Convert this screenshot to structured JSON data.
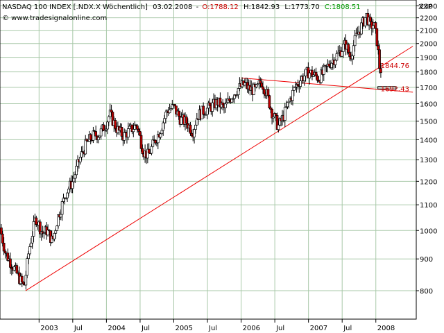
{
  "header": {
    "instrument": "NASDAQ 100 INDEX [.NDX.X  Wöchentlich]",
    "date": "03.02.2008",
    "open": "O:1788.12",
    "high": "H:1842.93",
    "low": "L:1773.70",
    "close": "C:1808.51",
    "symbol": "XXP",
    "copyright": "© www.tradesignalonline.com"
  },
  "colors": {
    "up": "#ffffff",
    "down": "#c00000",
    "open_text": "#cc0000",
    "close_text": "#009900",
    "trend": "#ee0000",
    "grid": "#a8c8a8",
    "value_label": "#cc0000"
  },
  "chart_data": {
    "type": "candlestick",
    "scale": "log",
    "ylim": [
      720,
      2350
    ],
    "y_ticks": [
      800,
      900,
      1000,
      1100,
      1200,
      1300,
      1400,
      1500,
      1600,
      1700,
      1800,
      1900,
      2000,
      2100,
      2200,
      2300
    ],
    "x_ticks": [
      {
        "label": "2003",
        "t": 2003.0
      },
      {
        "label": "Jul",
        "t": 2003.5
      },
      {
        "label": "2004",
        "t": 2004.0
      },
      {
        "label": "Jul",
        "t": 2004.5
      },
      {
        "label": "2005",
        "t": 2005.0
      },
      {
        "label": "Jul",
        "t": 2005.5
      },
      {
        "label": "2006",
        "t": 2006.0
      },
      {
        "label": "Jul",
        "t": 2006.5
      },
      {
        "label": "2007",
        "t": 2007.0
      },
      {
        "label": "Jul",
        "t": 2007.5
      },
      {
        "label": "2008",
        "t": 2008.0
      }
    ],
    "grid": true,
    "price_path": [
      [
        2002.42,
        1010
      ],
      [
        2002.5,
        920
      ],
      [
        2002.6,
        880
      ],
      [
        2002.78,
        810
      ],
      [
        2002.85,
        930
      ],
      [
        2002.95,
        1050
      ],
      [
        2003.05,
        990
      ],
      [
        2003.12,
        1000
      ],
      [
        2003.2,
        960
      ],
      [
        2003.28,
        1050
      ],
      [
        2003.4,
        1150
      ],
      [
        2003.5,
        1200
      ],
      [
        2003.6,
        1300
      ],
      [
        2003.7,
        1380
      ],
      [
        2003.8,
        1420
      ],
      [
        2003.9,
        1430
      ],
      [
        2004.0,
        1490
      ],
      [
        2004.05,
        1540
      ],
      [
        2004.15,
        1460
      ],
      [
        2004.25,
        1420
      ],
      [
        2004.35,
        1450
      ],
      [
        2004.45,
        1480
      ],
      [
        2004.55,
        1340
      ],
      [
        2004.62,
        1320
      ],
      [
        2004.7,
        1380
      ],
      [
        2004.8,
        1450
      ],
      [
        2004.9,
        1560
      ],
      [
        2005.0,
        1580
      ],
      [
        2005.1,
        1510
      ],
      [
        2005.2,
        1490
      ],
      [
        2005.28,
        1440
      ],
      [
        2005.35,
        1530
      ],
      [
        2005.45,
        1560
      ],
      [
        2005.55,
        1580
      ],
      [
        2005.65,
        1610
      ],
      [
        2005.75,
        1570
      ],
      [
        2005.85,
        1640
      ],
      [
        2005.95,
        1690
      ],
      [
        2006.05,
        1720
      ],
      [
        2006.12,
        1690
      ],
      [
        2006.22,
        1680
      ],
      [
        2006.3,
        1740
      ],
      [
        2006.38,
        1660
      ],
      [
        2006.45,
        1560
      ],
      [
        2006.55,
        1470
      ],
      [
        2006.62,
        1520
      ],
      [
        2006.7,
        1600
      ],
      [
        2006.8,
        1700
      ],
      [
        2006.9,
        1760
      ],
      [
        2007.0,
        1800
      ],
      [
        2007.08,
        1780
      ],
      [
        2007.15,
        1760
      ],
      [
        2007.22,
        1790
      ],
      [
        2007.3,
        1850
      ],
      [
        2007.4,
        1900
      ],
      [
        2007.48,
        1950
      ],
      [
        2007.55,
        2000
      ],
      [
        2007.62,
        1900
      ],
      [
        2007.7,
        2040
      ],
      [
        2007.8,
        2150
      ],
      [
        2007.86,
        2220
      ],
      [
        2007.92,
        2130
      ],
      [
        2007.97,
        2150
      ],
      [
        2008.02,
        2010
      ],
      [
        2008.06,
        1810
      ],
      [
        2008.09,
        1820
      ]
    ],
    "trendlines": [
      {
        "from": [
          2002.8,
          800
        ],
        "to": [
          2008.55,
          1980
        ]
      },
      {
        "from": [
          2006.0,
          1760
        ],
        "to": [
          2008.55,
          1670
        ]
      }
    ],
    "support_box": {
      "from": [
        2008.03,
        1690
      ],
      "to": [
        2008.3,
        1705
      ]
    },
    "annotations": [
      {
        "text": "1844.76",
        "value": 1844.76,
        "t": 2008.05
      },
      {
        "text": "1692.43",
        "value": 1692.43,
        "t": 2008.05
      }
    ]
  }
}
